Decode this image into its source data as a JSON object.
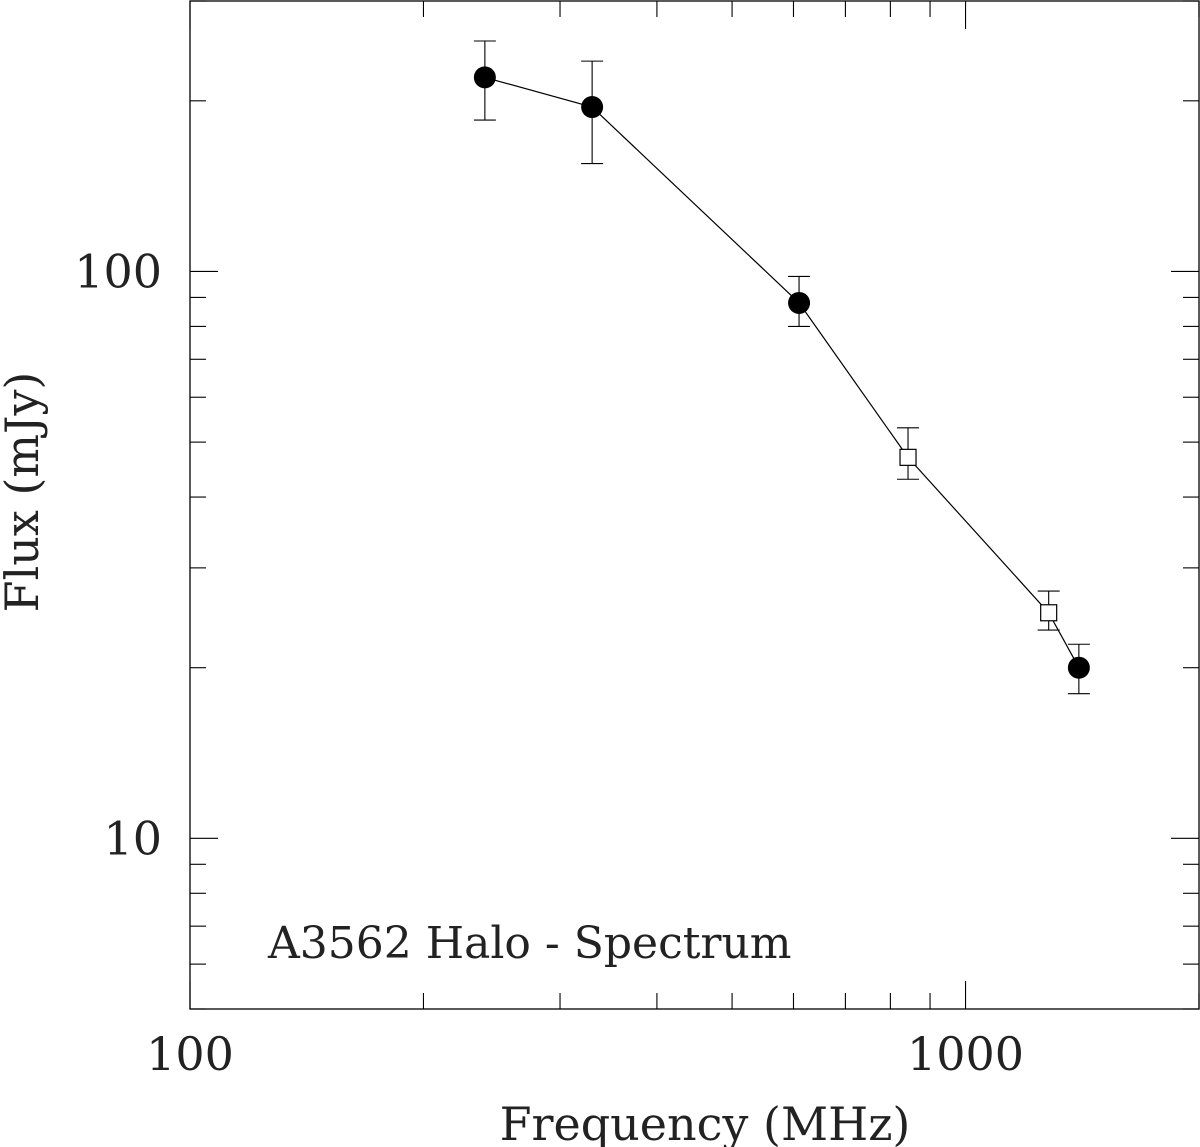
{
  "chart_data": {
    "type": "scatter",
    "xlabel": "Frequency (MHz)",
    "ylabel": "Flux (mJy)",
    "annotation": "A3562 Halo - Spectrum",
    "x_scale": "log",
    "y_scale": "log",
    "xlim": [
      100,
      2000
    ],
    "ylim": [
      5,
      300
    ],
    "x_tick_labels": [
      {
        "value": 100,
        "label": "100"
      },
      {
        "value": 1000,
        "label": "1000"
      }
    ],
    "y_tick_labels": [
      {
        "value": 10,
        "label": "10"
      },
      {
        "value": 100,
        "label": "100"
      }
    ],
    "grid": false,
    "connecting_line": true,
    "colors": {
      "line": "#000000",
      "marker": "#000000"
    },
    "series": [
      {
        "marker": "filled-circle",
        "points": [
          {
            "x": 240,
            "y": 220,
            "err_low": 35,
            "err_high": 35
          },
          {
            "x": 330,
            "y": 195,
            "err_low": 40,
            "err_high": 40
          },
          {
            "x": 610,
            "y": 88,
            "err_low": 8,
            "err_high": 10
          },
          {
            "x": 1400,
            "y": 20,
            "err_low": 2,
            "err_high": 2
          }
        ]
      },
      {
        "marker": "open-square",
        "points": [
          {
            "x": 843,
            "y": 47,
            "err_low": 4,
            "err_high": 6
          },
          {
            "x": 1280,
            "y": 25,
            "err_low": 1.7,
            "err_high": 2.3
          }
        ]
      }
    ]
  }
}
